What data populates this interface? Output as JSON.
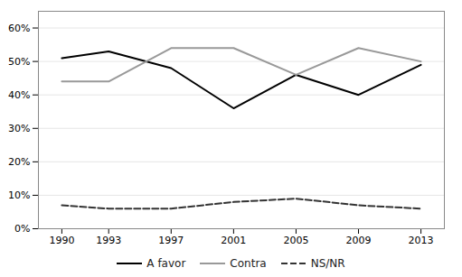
{
  "chart_data": {
    "type": "line",
    "x": [
      1990,
      1993,
      1997,
      2001,
      2005,
      2009,
      2013
    ],
    "series": [
      {
        "name": "A favor",
        "color": "#000000",
        "line_style": "solid",
        "values": [
          51,
          53,
          48,
          36,
          46,
          40,
          49
        ]
      },
      {
        "name": "Contra",
        "color": "#999999",
        "line_style": "solid",
        "values": [
          44,
          44,
          54,
          54,
          46,
          54,
          50
        ]
      },
      {
        "name": "NS/NR",
        "color": "#333333",
        "line_style": "dashed",
        "values": [
          7,
          6,
          6,
          8,
          9,
          7,
          6
        ]
      }
    ],
    "xlim": [
      1988.5,
      2014.5
    ],
    "xticks": [
      1990,
      1993,
      1997,
      2001,
      2005,
      2009,
      2013
    ],
    "ylim": [
      0,
      65
    ],
    "yticks": [
      {
        "value": 0,
        "label": "0%"
      },
      {
        "value": 10,
        "label": "10%"
      },
      {
        "value": 20,
        "label": "20%"
      },
      {
        "value": 30,
        "label": "30%"
      },
      {
        "value": 40,
        "label": "40%"
      },
      {
        "value": 50,
        "label": "50%"
      },
      {
        "value": 60,
        "label": "60%"
      }
    ],
    "grid": "y",
    "legend": "bottom"
  }
}
